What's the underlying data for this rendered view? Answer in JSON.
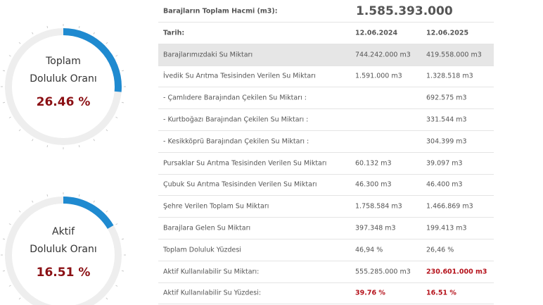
{
  "gauges": {
    "total": {
      "label_line1": "Toplam",
      "label_line2": "Doluluk Oranı",
      "value_text": "26.46 %",
      "fraction": 0.2646
    },
    "active": {
      "label_line1": "Aktif",
      "label_line2": "Doluluk Oranı",
      "value_text": "16.51 %",
      "fraction": 0.1651
    },
    "colors": {
      "track": "#eeeeee",
      "arc": "#1f8ad0",
      "value": "#8b1014",
      "ticks": "#c8c8c8"
    }
  },
  "table": {
    "total_volume_label": "Barajların Toplam Hacmi (m3):",
    "total_volume_value": "1.585.393.000",
    "date_label": "Tarih:",
    "date_1": "12.06.2024",
    "date_2": "12.06.2025",
    "rows": [
      {
        "label": "Barajlarımızdaki Su Miktarı",
        "v1": "744.242.000 m3",
        "v2": "419.558.000 m3"
      },
      {
        "label": "İvedik Su Arıtma Tesisinden Verilen Su Miktarı",
        "v1": "1.591.000 m3",
        "v2": "1.328.518 m3"
      },
      {
        "label": "- Çamlıdere Barajından Çekilen Su Miktarı :",
        "v1": "",
        "v2": "692.575 m3"
      },
      {
        "label": "- Kurtboğazı Barajından Çekilen Su Miktarı :",
        "v1": "",
        "v2": "331.544 m3"
      },
      {
        "label": "- Kesikköprü Barajından Çekilen Su Miktarı :",
        "v1": "",
        "v2": "304.399 m3"
      },
      {
        "label": "Pursaklar Su Arıtma Tesisinden Verilen Su Miktarı",
        "v1": "60.132 m3",
        "v2": "39.097 m3"
      },
      {
        "label": "Çubuk Su Arıtma Tesisinden Verilen Su Miktarı",
        "v1": "46.300 m3",
        "v2": "46.400 m3"
      },
      {
        "label": "Şehre Verilen Toplam Su Miktarı",
        "v1": "1.758.584 m3",
        "v2": "1.466.869 m3"
      },
      {
        "label": "Barajlara Gelen Su Miktarı",
        "v1": "397.348 m3",
        "v2": "199.413 m3"
      },
      {
        "label": "Toplam Doluluk Yüzdesi",
        "v1": "46,94 %",
        "v2": "26,46 %"
      },
      {
        "label": "Aktif Kullanılabilir Su Miktarı:",
        "v1": "555.285.000 m3",
        "v2": "230.601.000 m3"
      },
      {
        "label": "Aktif Kullanılabilir Su Yüzdesi:",
        "v1": "39.76 %",
        "v2": "16.51 %"
      }
    ]
  }
}
